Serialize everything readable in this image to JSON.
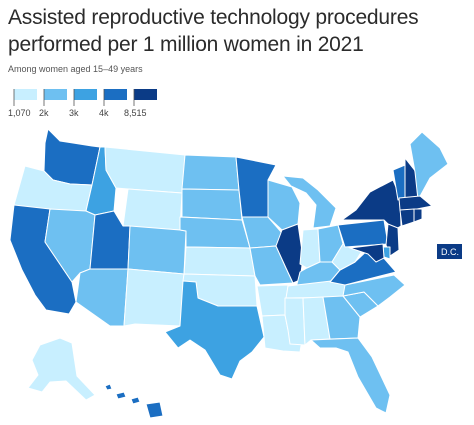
{
  "title": "Assisted reproductive technology procedures performed per 1 million women in 2021",
  "subtitle": "Among women aged 15–49 years",
  "legend": {
    "ticks": [
      "1,070",
      "2k",
      "3k",
      "4k",
      "8,515"
    ],
    "colors": [
      "#c8efff",
      "#6ec0f1",
      "#3da2e2",
      "#1b6ec2",
      "#0b3b86"
    ]
  },
  "dc_label": "D.C.",
  "colors": {
    "lightest": "#c8efff",
    "light": "#6ec0f1",
    "mid": "#3da2e2",
    "dark": "#1b6ec2",
    "darkest": "#0b3b86",
    "border": "#ffffff"
  }
}
